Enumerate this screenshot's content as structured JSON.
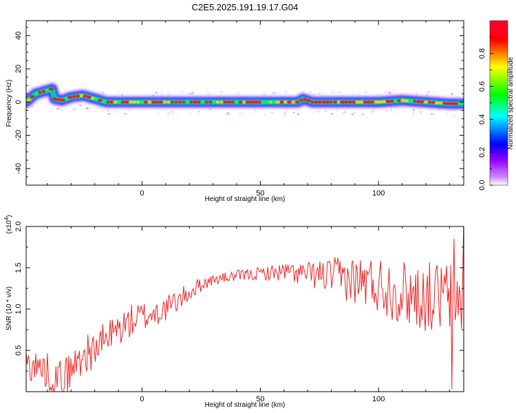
{
  "title": "C2E5.2025.191.19.17.G04",
  "chart_data": [
    {
      "type": "heatmap",
      "xlabel": "Height of straight line (km)",
      "ylabel": "Frequency (Hz)",
      "xlim": [
        -49,
        136
      ],
      "ylim": [
        -50,
        49
      ],
      "xticks": [
        0,
        50,
        100
      ],
      "yticks": [
        -40,
        -20,
        0,
        20,
        40
      ],
      "colorbar": {
        "label": "Normalized spectral amplitude",
        "range": [
          0,
          1
        ],
        "ticks": [
          "0.0",
          "0.2",
          "0.4",
          "0.6",
          "0.8"
        ],
        "colormap": [
          "#ffffff",
          "#9900ff",
          "#0000ff",
          "#00ffff",
          "#00ff00",
          "#ffff00",
          "#ff0000"
        ]
      },
      "ridge": {
        "x": [
          -49,
          -45,
          -40,
          -38,
          -37,
          -34,
          -30,
          -25,
          -20,
          -15,
          -10,
          0,
          20,
          50,
          66,
          68,
          72,
          80,
          90,
          100,
          110,
          120,
          130,
          136
        ],
        "y": [
          0,
          5,
          7,
          8,
          2,
          1,
          3,
          4,
          2,
          0,
          0,
          0,
          0,
          0,
          0,
          2,
          0,
          0,
          0,
          0,
          1,
          0,
          -1,
          -1
        ]
      },
      "grid": false
    },
    {
      "type": "line",
      "title": "",
      "xlabel": "Height of straight line (km)",
      "ylabel": "SNR (10 * v/v)",
      "y_multiplier": "(x10^4)",
      "y_multiplier_base": "(x10",
      "y_multiplier_exp": "4",
      "xlim": [
        -49,
        136
      ],
      "ylim": [
        0,
        2.0
      ],
      "xticks": [
        0,
        50,
        100
      ],
      "yticks": [
        0.5,
        1.0,
        1.5,
        2.0
      ],
      "series": [
        {
          "color": "#ee2222",
          "trend": {
            "x": [
              -49,
              -40,
              -35,
              -30,
              -25,
              -20,
              -15,
              -10,
              -5,
              0,
              5,
              10,
              15,
              20,
              25,
              30,
              35,
              40,
              50,
              60,
              70,
              80,
              90,
              100,
              110,
              120,
              130,
              136
            ],
            "y": [
              0.35,
              0.25,
              0.15,
              0.25,
              0.45,
              0.5,
              0.65,
              0.75,
              0.85,
              0.9,
              0.95,
              1.0,
              1.1,
              1.2,
              1.3,
              1.35,
              1.38,
              1.4,
              1.43,
              1.45,
              1.42,
              1.4,
              1.35,
              1.3,
              1.2,
              1.15,
              1.15,
              1.1
            ]
          },
          "noise": {
            "x": [
              -49,
              -30,
              -20,
              0,
              20,
              30,
              50,
              70,
              90,
              110,
              130,
              136
            ],
            "y": [
              0.2,
              0.25,
              0.22,
              0.2,
              0.12,
              0.06,
              0.08,
              0.15,
              0.3,
              0.4,
              0.45,
              0.45
            ]
          },
          "spikes": [
            {
              "x": 131,
              "y": 0.03
            },
            {
              "x": 132,
              "y": 1.85
            },
            {
              "x": 136,
              "y": 2.0
            }
          ]
        }
      ],
      "grid": false
    }
  ]
}
